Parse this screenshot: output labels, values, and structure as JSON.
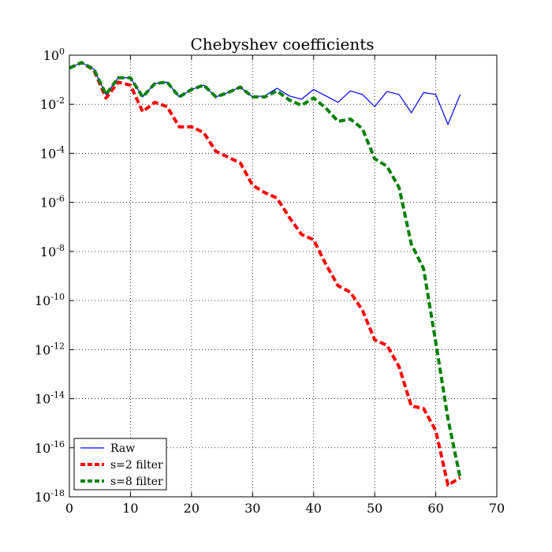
{
  "chart_data": {
    "type": "line",
    "title": "Chebyshev coefficients",
    "xlabel": "",
    "ylabel": "",
    "xlim": [
      0,
      70
    ],
    "ylim": [
      1e-18,
      1
    ],
    "yscale": "log",
    "grid": true,
    "legend_position": "lower-left",
    "x_ticks": [
      0,
      10,
      20,
      30,
      40,
      50,
      60,
      70
    ],
    "y_ticks": [
      {
        "value": 1,
        "base": "10",
        "exp": "0"
      },
      {
        "value": 0.01,
        "base": "10",
        "exp": "-2"
      },
      {
        "value": 0.0001,
        "base": "10",
        "exp": "-4"
      },
      {
        "value": 1e-06,
        "base": "10",
        "exp": "-6"
      },
      {
        "value": 1e-08,
        "base": "10",
        "exp": "-8"
      },
      {
        "value": 1e-10,
        "base": "10",
        "exp": "-10"
      },
      {
        "value": 1e-12,
        "base": "10",
        "exp": "-12"
      },
      {
        "value": 1e-14,
        "base": "10",
        "exp": "-14"
      },
      {
        "value": 1e-16,
        "base": "10",
        "exp": "-16"
      },
      {
        "value": 1e-18,
        "base": "10",
        "exp": "-18"
      }
    ],
    "x": [
      0,
      2,
      4,
      6,
      8,
      10,
      12,
      14,
      16,
      18,
      20,
      22,
      24,
      26,
      28,
      30,
      32,
      34,
      36,
      38,
      40,
      42,
      44,
      46,
      48,
      50,
      52,
      54,
      56,
      58,
      60,
      62,
      64
    ],
    "series": [
      {
        "name": "Raw",
        "color": "#0000ff",
        "style": "solid",
        "values": [
          0.3,
          0.5,
          0.27,
          0.025,
          0.12,
          0.12,
          0.02,
          0.07,
          0.08,
          0.02,
          0.04,
          0.06,
          0.02,
          0.03,
          0.05,
          0.02,
          0.022,
          0.045,
          0.022,
          0.016,
          0.04,
          0.022,
          0.012,
          0.035,
          0.025,
          0.008,
          0.033,
          0.025,
          0.0045,
          0.03,
          0.025,
          0.0015,
          0.025
        ]
      },
      {
        "name": "s=2 filter",
        "color": "#ff0000",
        "style": "dashed",
        "values": [
          0.3,
          0.5,
          0.25,
          0.018,
          0.08,
          0.06,
          0.005,
          0.012,
          0.008,
          0.0012,
          0.0012,
          0.0007,
          0.00012,
          7e-05,
          4e-05,
          5e-06,
          2.5e-06,
          1.5e-06,
          2.5e-07,
          5e-08,
          3e-08,
          3e-09,
          4e-10,
          2.2e-10,
          4e-11,
          2.5e-12,
          1.5e-12,
          2e-13,
          5e-15,
          4e-15,
          5e-16,
          3e-18,
          6e-18
        ]
      },
      {
        "name": "s=8 filter",
        "color": "#008000",
        "style": "dashed",
        "values": [
          0.3,
          0.5,
          0.27,
          0.025,
          0.12,
          0.12,
          0.02,
          0.07,
          0.08,
          0.02,
          0.04,
          0.06,
          0.02,
          0.03,
          0.05,
          0.02,
          0.02,
          0.035,
          0.015,
          0.009,
          0.018,
          0.007,
          0.002,
          0.0025,
          0.001,
          6e-05,
          3e-05,
          4e-06,
          2e-08,
          2e-09,
          2e-12,
          1.5e-15,
          6e-18
        ]
      }
    ]
  }
}
